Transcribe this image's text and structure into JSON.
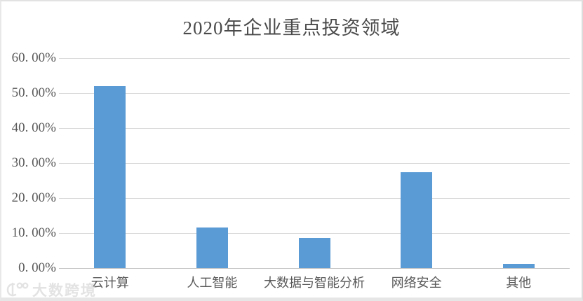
{
  "chart_data": {
    "type": "bar",
    "title": "2020年企业重点投资领域",
    "categories": [
      "云计算",
      "人工智能",
      "大数据与智能分析",
      "网络安全",
      "其他"
    ],
    "values": [
      52.0,
      11.6,
      8.6,
      27.5,
      1.3
    ],
    "unit": "%",
    "xlabel": "",
    "ylabel": "",
    "ylim": [
      0,
      60
    ],
    "ytick_step": 10,
    "ytick_labels": [
      "0. 00%",
      "10. 00%",
      "20. 00%",
      "30. 00%",
      "40. 00%",
      "50. 00%",
      "60. 00%"
    ],
    "grid": true,
    "legend_position": "none",
    "bar_color": "#5B9BD5",
    "gridline_color": "#D9D9D9",
    "axis_line_color": "#C6C6C6",
    "label_color": "#595959",
    "title_color": "#4A4A4A"
  },
  "watermark": {
    "text": "大数跨境",
    "logo": "dashu-kuajing-logo",
    "color": "#E3E3E3"
  }
}
